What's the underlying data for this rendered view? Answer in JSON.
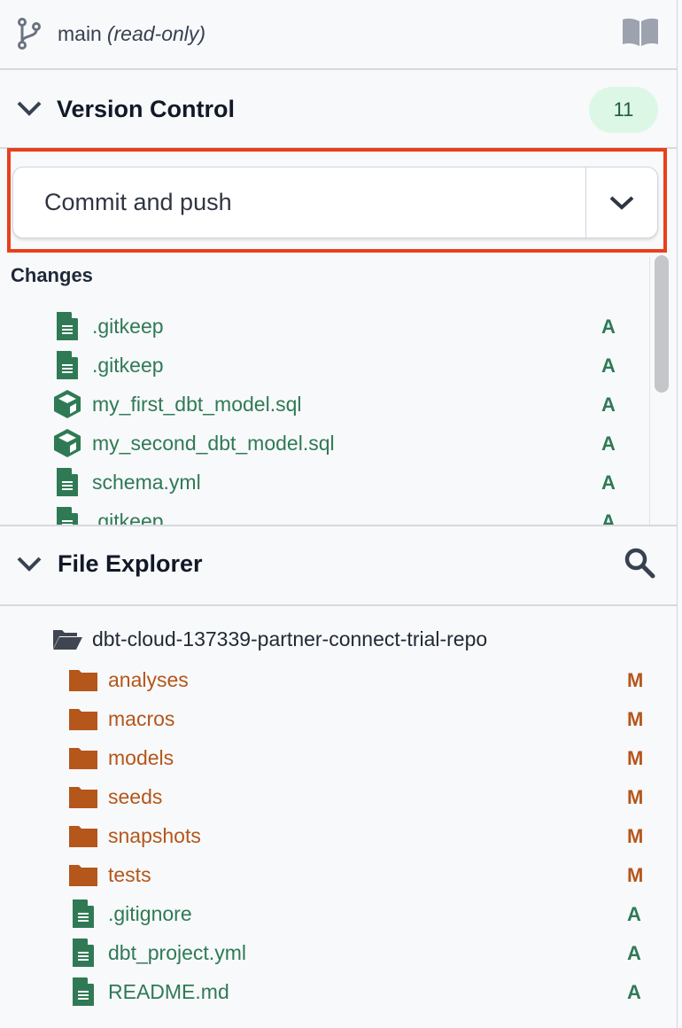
{
  "branch": {
    "name": "main",
    "mode": "(read-only)"
  },
  "version_control": {
    "title": "Version Control",
    "count": "11",
    "commit_button": "Commit and push",
    "changes_label": "Changes",
    "changes": [
      {
        "name": ".gitkeep",
        "icon": "file-icon",
        "status": "A"
      },
      {
        "name": ".gitkeep",
        "icon": "file-icon",
        "status": "A"
      },
      {
        "name": "my_first_dbt_model.sql",
        "icon": "model-cube-icon",
        "status": "A"
      },
      {
        "name": "my_second_dbt_model.sql",
        "icon": "model-cube-icon",
        "status": "A"
      },
      {
        "name": "schema.yml",
        "icon": "file-icon",
        "status": "A"
      },
      {
        "name": ".gitkeep",
        "icon": "file-icon",
        "status": "A"
      }
    ]
  },
  "file_explorer": {
    "title": "File Explorer",
    "root": "dbt-cloud-137339-partner-connect-trial-repo",
    "items": [
      {
        "name": "analyses",
        "type": "folder",
        "status": "M"
      },
      {
        "name": "macros",
        "type": "folder",
        "status": "M"
      },
      {
        "name": "models",
        "type": "folder",
        "status": "M"
      },
      {
        "name": "seeds",
        "type": "folder",
        "status": "M"
      },
      {
        "name": "snapshots",
        "type": "folder",
        "status": "M"
      },
      {
        "name": "tests",
        "type": "folder",
        "status": "M"
      },
      {
        "name": ".gitignore",
        "type": "file",
        "status": "A"
      },
      {
        "name": "dbt_project.yml",
        "type": "file",
        "status": "A"
      },
      {
        "name": "README.md",
        "type": "file",
        "status": "A"
      }
    ]
  },
  "colors": {
    "added": "#2f7a55",
    "modified": "#b5561a",
    "highlight": "#e8401c",
    "badge_bg": "#dcf7e6"
  }
}
